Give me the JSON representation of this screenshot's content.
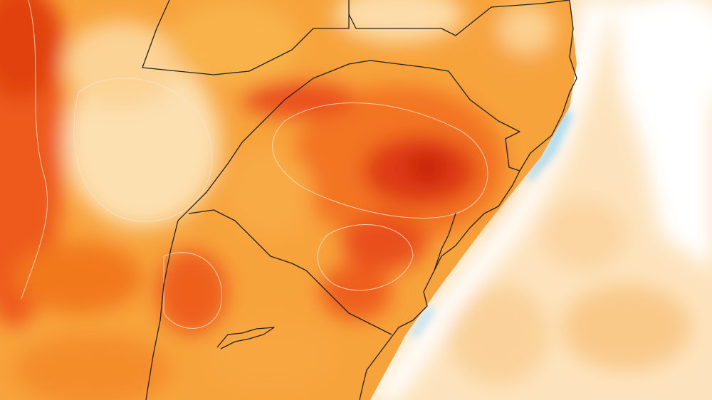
{
  "map": {
    "type": "temperature-anomaly-contour-map",
    "colors": {
      "very_hot": "#d8300f",
      "hot": "#f0661d",
      "warm": "#f6942c",
      "mild": "#f9b34f",
      "light": "#fbd28c",
      "pale": "#fde7c3",
      "neutral": "#ffffff",
      "cool": "#bfe4f5",
      "border": "#222222",
      "contour": "#f6e6d2"
    }
  }
}
